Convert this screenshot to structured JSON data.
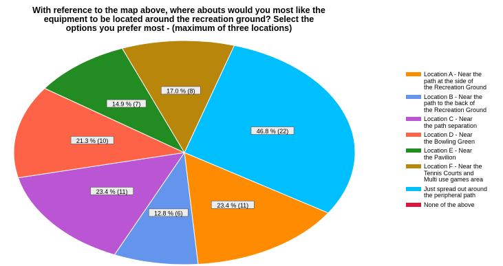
{
  "chart_data": {
    "type": "pie",
    "title_lines": [
      "With reference to the map above, where abouts would you most like the",
      "equipment to be located around the recreation ground? Select the",
      "options you prefer most - (maximum of three locations)"
    ],
    "slices": [
      {
        "name": "Just spread out around the peripheral path",
        "legend_label": "Just spread out around\nthe peripheral path",
        "percent": 46.8,
        "count": 22,
        "label": "46.8 % (22)",
        "color": "#00bfff"
      },
      {
        "name": "Location A - Near the path at the side of the Recreation Ground",
        "legend_label": "Location A - Near the\npath at the side of\nthe Recreation Ground",
        "percent": 23.4,
        "count": 11,
        "label": "23.4 % (11)",
        "color": "#ff8c00"
      },
      {
        "name": "Location B - Near the path to the back of the Recreation Ground",
        "legend_label": "Location B - Near the\npath to the back of\nthe Recreation Ground",
        "percent": 12.8,
        "count": 6,
        "label": "12.8 % (6)",
        "color": "#6495ed"
      },
      {
        "name": "Location C - Near the path separation",
        "legend_label": "Location C - Near\nthe path separation",
        "percent": 23.4,
        "count": 11,
        "label": "23.4 % (11)",
        "color": "#ba55d3"
      },
      {
        "name": "Location D - Near the Bowling Green",
        "legend_label": "Location D - Near\nthe Bowling Green",
        "percent": 21.3,
        "count": 10,
        "label": "21.3 % (10)",
        "color": "#ff6347"
      },
      {
        "name": "Location E - Near the Pavilion",
        "legend_label": "Location E - Near\nthe Pavilion",
        "percent": 14.9,
        "count": 7,
        "label": "14.9 % (7)",
        "color": "#228b22"
      },
      {
        "name": "Location F - Near the Tennis Courts and Multi use games area",
        "legend_label": "Location F - Near the\nTennis Courts and\nMulti use games area",
        "percent": 17.0,
        "count": 8,
        "label": "17.0 % (8)",
        "color": "#b8860b"
      }
    ],
    "legend": [
      {
        "label": "Location A - Near the\npath at the side of\nthe Recreation Ground",
        "color": "#ff8c00"
      },
      {
        "label": "Location B - Near the\npath to the back of\nthe Recreation Ground",
        "color": "#6495ed"
      },
      {
        "label": "Location C - Near\nthe path separation",
        "color": "#ba55d3"
      },
      {
        "label": "Location D - Near\nthe Bowling Green",
        "color": "#ff6347"
      },
      {
        "label": "Location E - Near\nthe Pavilion",
        "color": "#228b22"
      },
      {
        "label": "Location F - Near the\nTennis Courts and\nMulti use games area",
        "color": "#b8860b"
      },
      {
        "label": "Just spread out around\nthe peripheral path",
        "color": "#00bfff"
      },
      {
        "label": "None of the above",
        "color": "#dc143c"
      }
    ],
    "legend_placement": "right"
  }
}
